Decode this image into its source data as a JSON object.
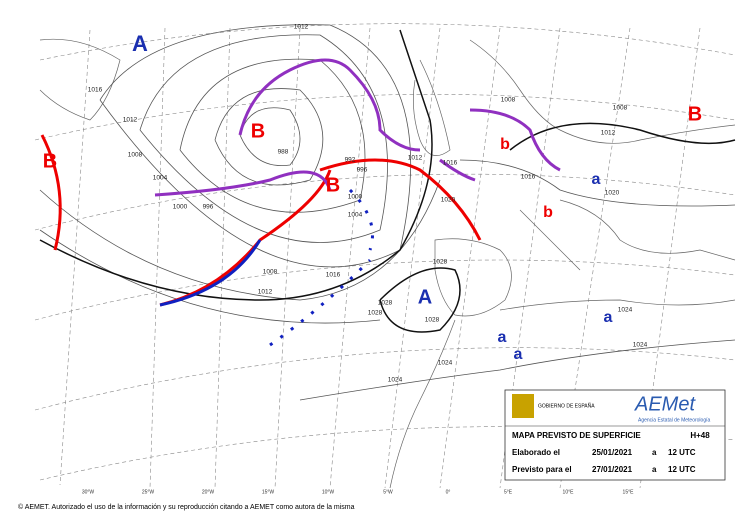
{
  "centers": [
    "A",
    "B",
    "B",
    "B",
    "B",
    "A",
    "b",
    "b",
    "a",
    "a",
    "a",
    "a"
  ],
  "isobar_labels": [
    "1012",
    "1016",
    "1008",
    "1004",
    "1000",
    "996",
    "988",
    "992",
    "996",
    "1000",
    "1004",
    "1008",
    "1012",
    "1016",
    "1012",
    "1012",
    "1016",
    "1020",
    "1028",
    "1028",
    "1028",
    "1028",
    "1024",
    "1024",
    "1024",
    "1024",
    "1008",
    "1012",
    "1016",
    "1020",
    "1008"
  ],
  "longitudes": [
    "30°W",
    "25°W",
    "20°W",
    "15°W",
    "10°W",
    "5°W",
    "0°",
    "5°E",
    "10°E",
    "15°E"
  ],
  "info": {
    "title": "MAPA PREVISTO DE SUPERFICIE",
    "step": "H+48",
    "made_label": "Elaborado el",
    "made_date": "25/01/2021",
    "made_at": "a",
    "made_time": "12 UTC",
    "valid_label": "Previsto para el",
    "valid_date": "27/01/2021",
    "valid_at": "a",
    "valid_time": "12 UTC",
    "government": "GOBIERNO DE ESPAÑA",
    "brand": "AEMet",
    "agency": "Agencia Estatal de Meteorología"
  },
  "footer": "© AEMET. Autorizado el uso de la información y su reproducción citando a AEMET como autora de la misma"
}
